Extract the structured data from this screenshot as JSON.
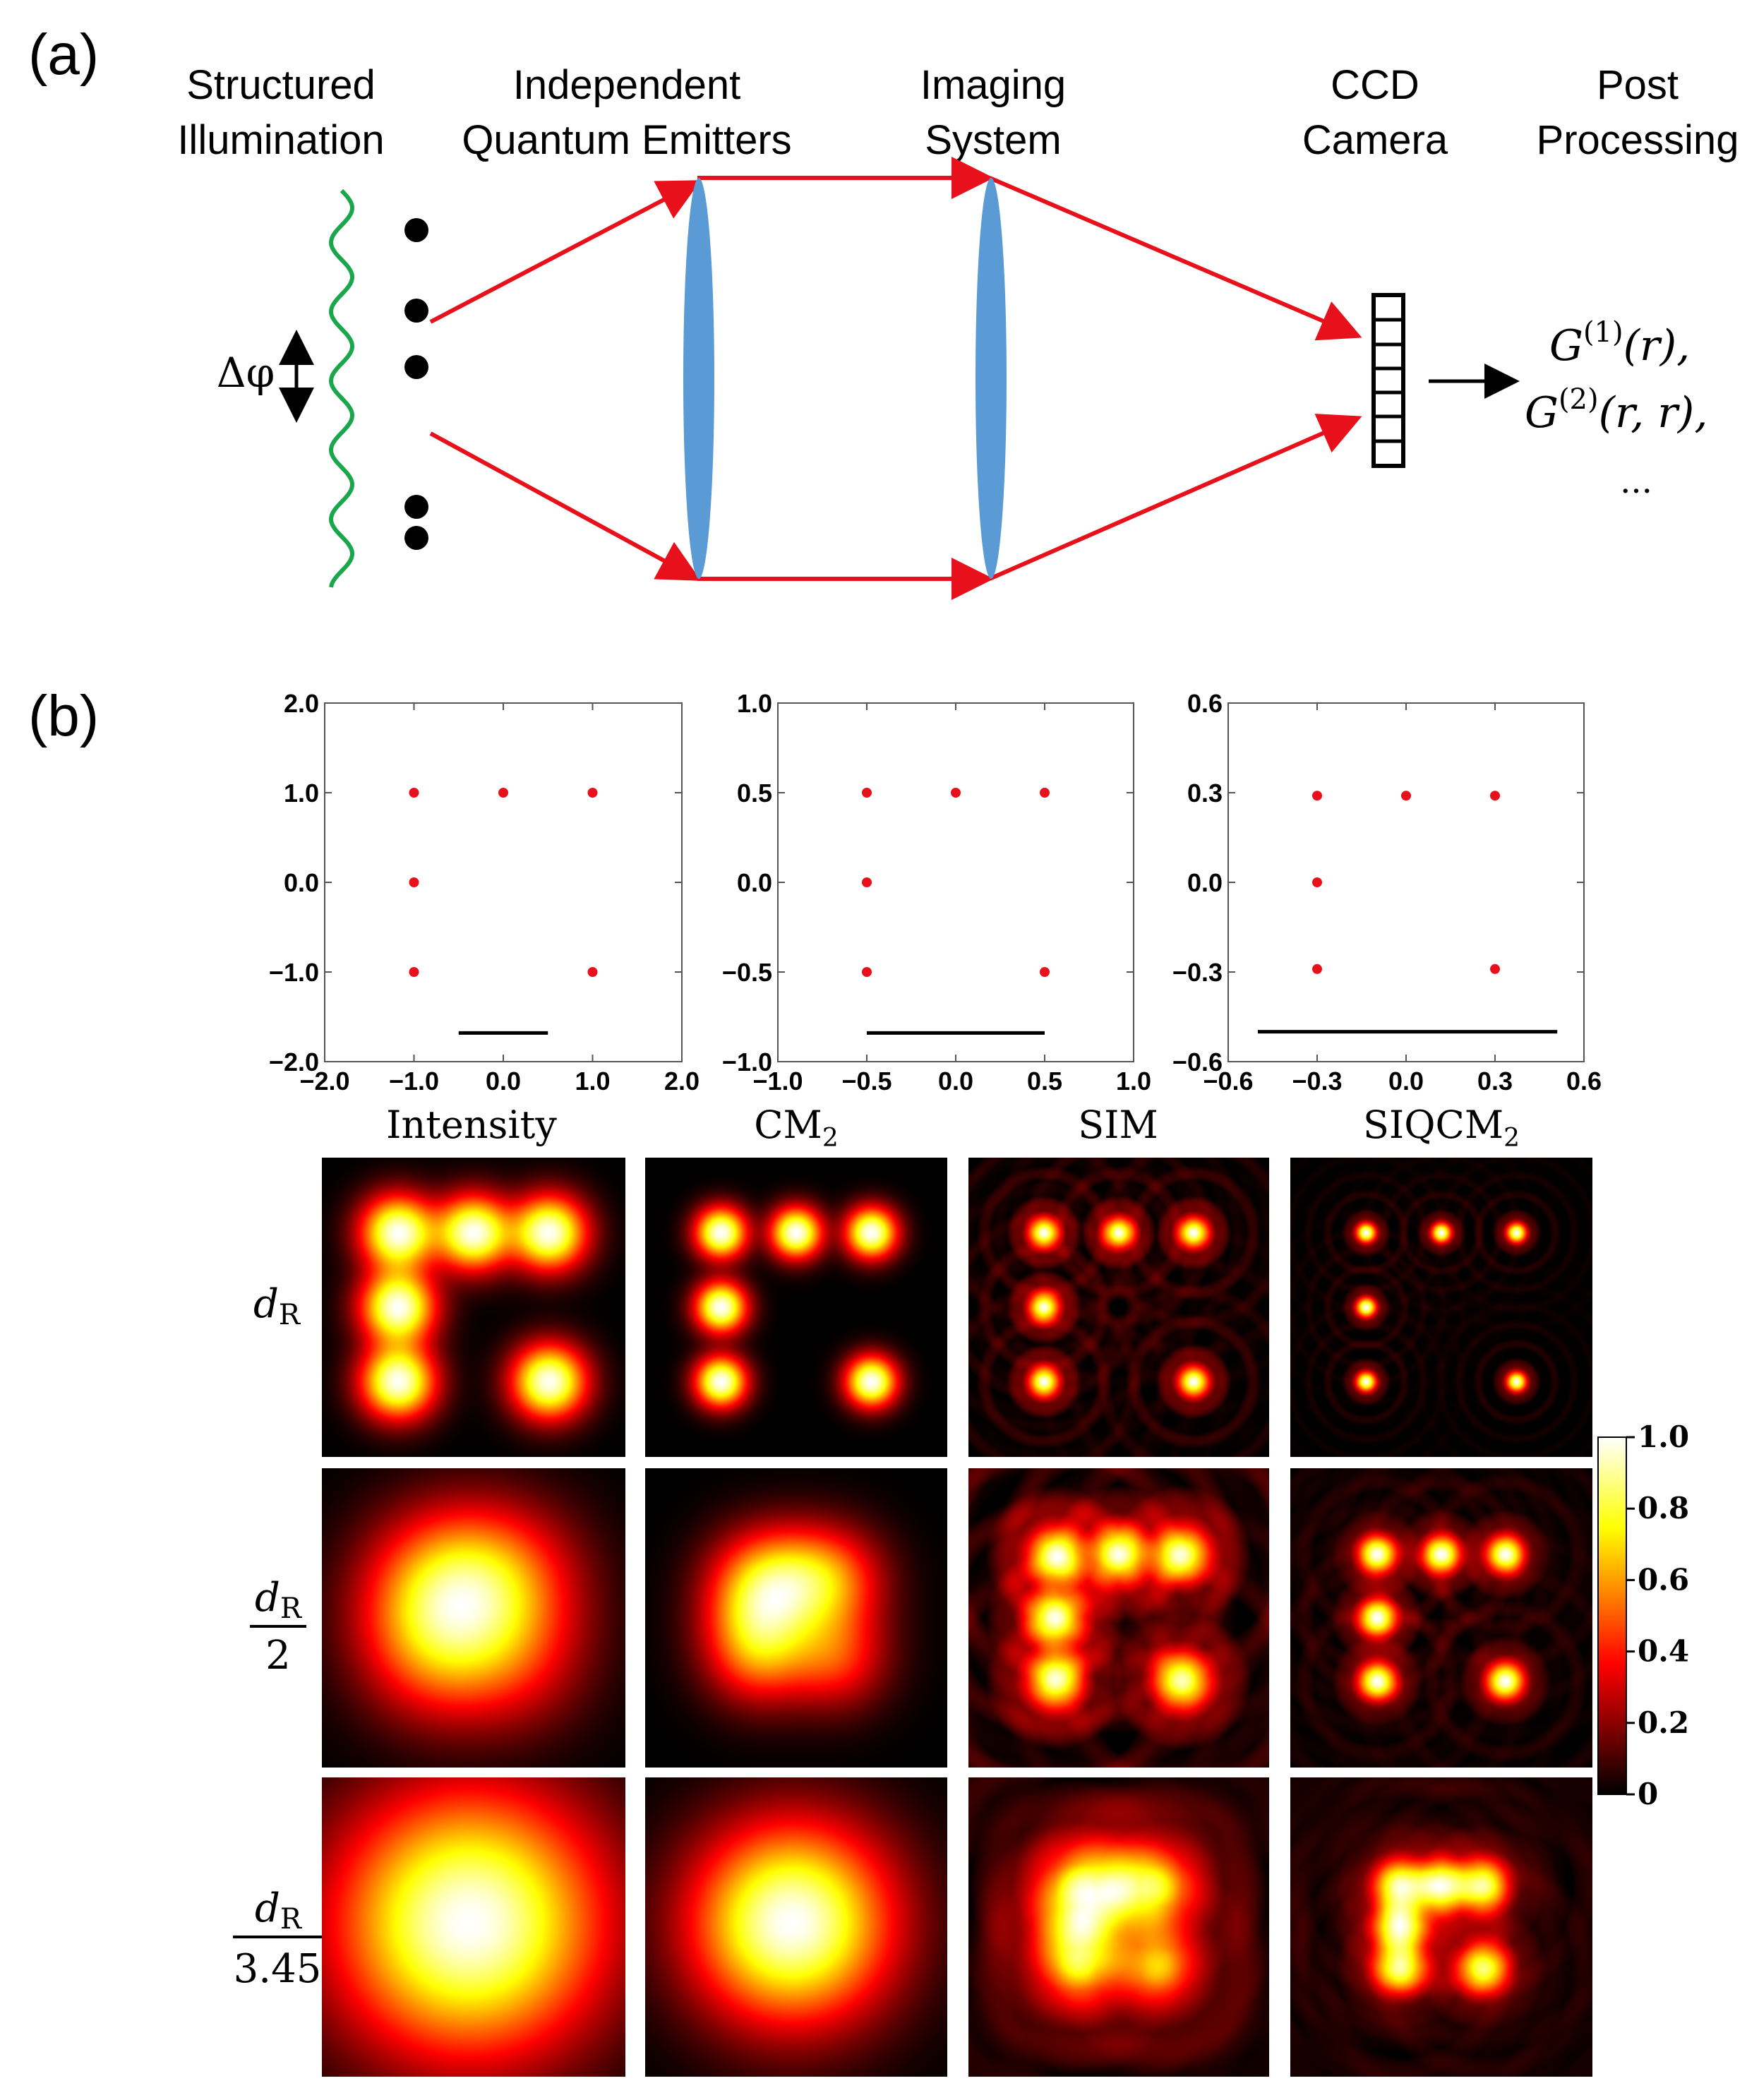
{
  "panel_a": {
    "label": "(a)",
    "stages": {
      "structured": [
        "Structured",
        "Illumination"
      ],
      "emitters": [
        "Independent",
        "Quantum Emitters"
      ],
      "imaging": [
        "Imaging",
        "System"
      ],
      "ccd": [
        "CCD",
        "Camera"
      ],
      "post": [
        "Post",
        "Processing"
      ]
    },
    "delta_phi": "Δφ",
    "outputs": {
      "g1": {
        "base": "G",
        "sup": "(1)",
        "args": "(r),"
      },
      "g2": {
        "base": "G",
        "sup": "(2)",
        "args": "(r, r),"
      },
      "ellipsis": "..."
    },
    "colors": {
      "wave": "#1aa64a",
      "rays": "#e8101a",
      "lens": "#5b9bd5",
      "emitter": "#000000"
    }
  },
  "panel_b": {
    "label": "(b)",
    "column_titles": [
      {
        "base": "Intensity",
        "sub": ""
      },
      {
        "base": "CM",
        "sub": "2"
      },
      {
        "base": "SIM",
        "sub": ""
      },
      {
        "base": "SIQCM",
        "sub": "2"
      }
    ],
    "row_labels": [
      {
        "num": "d",
        "num_sub": "R",
        "den": ""
      },
      {
        "num": "d",
        "num_sub": "R",
        "den": "2"
      },
      {
        "num": "d",
        "num_sub": "R",
        "den": "3.45"
      }
    ],
    "colorbar": {
      "ticks": [
        {
          "label": "1.0",
          "value": 1.0
        },
        {
          "label": "0.8",
          "value": 0.8
        },
        {
          "label": "0.6",
          "value": 0.6
        },
        {
          "label": "0.4",
          "value": 0.4
        },
        {
          "label": "0.2",
          "value": 0.2
        },
        {
          "label": "0",
          "value": 0.0
        }
      ],
      "colormap": "hot"
    }
  },
  "chart_data": [
    {
      "type": "scatter",
      "xlim": [
        -2.0,
        2.0
      ],
      "ylim": [
        -2.0,
        2.0
      ],
      "xticks": [
        "-2.0",
        "-1.0",
        "0.0",
        "1.0",
        "2.0"
      ],
      "xtick_values": [
        -2,
        -1,
        0,
        1,
        2
      ],
      "yticks": [
        "2.0",
        "1.0",
        "0.0",
        "-1.0",
        "-2.0"
      ],
      "ytick_values": [
        2,
        1,
        0,
        -1,
        -2
      ],
      "points": [
        [
          -1,
          1
        ],
        [
          0,
          1
        ],
        [
          1,
          1
        ],
        [
          -1,
          0
        ],
        [
          -1,
          -1
        ],
        [
          1,
          -1
        ]
      ],
      "scale_bar": [
        -0.5,
        0.5
      ],
      "scale_bar_y": -1.68,
      "color": "#e8101a"
    },
    {
      "type": "scatter",
      "xlim": [
        -1.0,
        1.0
      ],
      "ylim": [
        -1.0,
        1.0
      ],
      "xticks": [
        "-1.0",
        "-0.5",
        "0.0",
        "0.5",
        "1.0"
      ],
      "xtick_values": [
        -1,
        -0.5,
        0,
        0.5,
        1
      ],
      "yticks": [
        "1.0",
        "0.5",
        "0.0",
        "-0.5",
        "-1.0"
      ],
      "ytick_values": [
        1,
        0.5,
        0,
        -0.5,
        -1
      ],
      "points": [
        [
          -0.5,
          0.5
        ],
        [
          0,
          0.5
        ],
        [
          0.5,
          0.5
        ],
        [
          -0.5,
          0
        ],
        [
          -0.5,
          -0.5
        ],
        [
          0.5,
          -0.5
        ]
      ],
      "scale_bar": [
        -0.5,
        0.5
      ],
      "scale_bar_y": -0.84,
      "color": "#e8101a"
    },
    {
      "type": "scatter",
      "xlim": [
        -0.6,
        0.6
      ],
      "ylim": [
        -0.6,
        0.6
      ],
      "xticks": [
        "-0.6",
        "-0.3",
        "0.0",
        "0.3",
        "0.6"
      ],
      "xtick_values": [
        -0.6,
        -0.3,
        0,
        0.3,
        0.6
      ],
      "yticks": [
        "0.6",
        "0.3",
        "0.0",
        "-0.3",
        "-0.6"
      ],
      "ytick_values": [
        0.6,
        0.3,
        0,
        -0.3,
        -0.6
      ],
      "points": [
        [
          -0.3,
          0.29
        ],
        [
          0,
          0.29
        ],
        [
          0.3,
          0.29
        ],
        [
          -0.3,
          0
        ],
        [
          -0.3,
          -0.29
        ],
        [
          0.3,
          -0.29
        ]
      ],
      "scale_bar": [
        -0.5,
        0.51
      ],
      "scale_bar_y": -0.5,
      "color": "#e8101a"
    }
  ],
  "heatmaps": {
    "emitters_normalized": [
      [
        -0.5,
        -0.5
      ],
      [
        0,
        -0.5
      ],
      [
        0.5,
        -0.5
      ],
      [
        -0.5,
        0
      ],
      [
        -0.5,
        0.5
      ],
      [
        0.5,
        0.5
      ]
    ],
    "spot_sigma": [
      [
        0.16,
        0.11,
        0.07,
        0.045
      ],
      [
        0.33,
        0.23,
        0.13,
        0.085
      ],
      [
        0.55,
        0.4,
        0.2,
        0.12
      ]
    ],
    "emitter_scale": [
      [
        1.0,
        1.0,
        1.0,
        1.0
      ],
      [
        0.5,
        0.5,
        0.85,
        0.85
      ],
      [
        0.3,
        0.3,
        0.55,
        0.55
      ]
    ],
    "ripple": [
      0,
      0,
      0.12,
      0.07
    ]
  }
}
